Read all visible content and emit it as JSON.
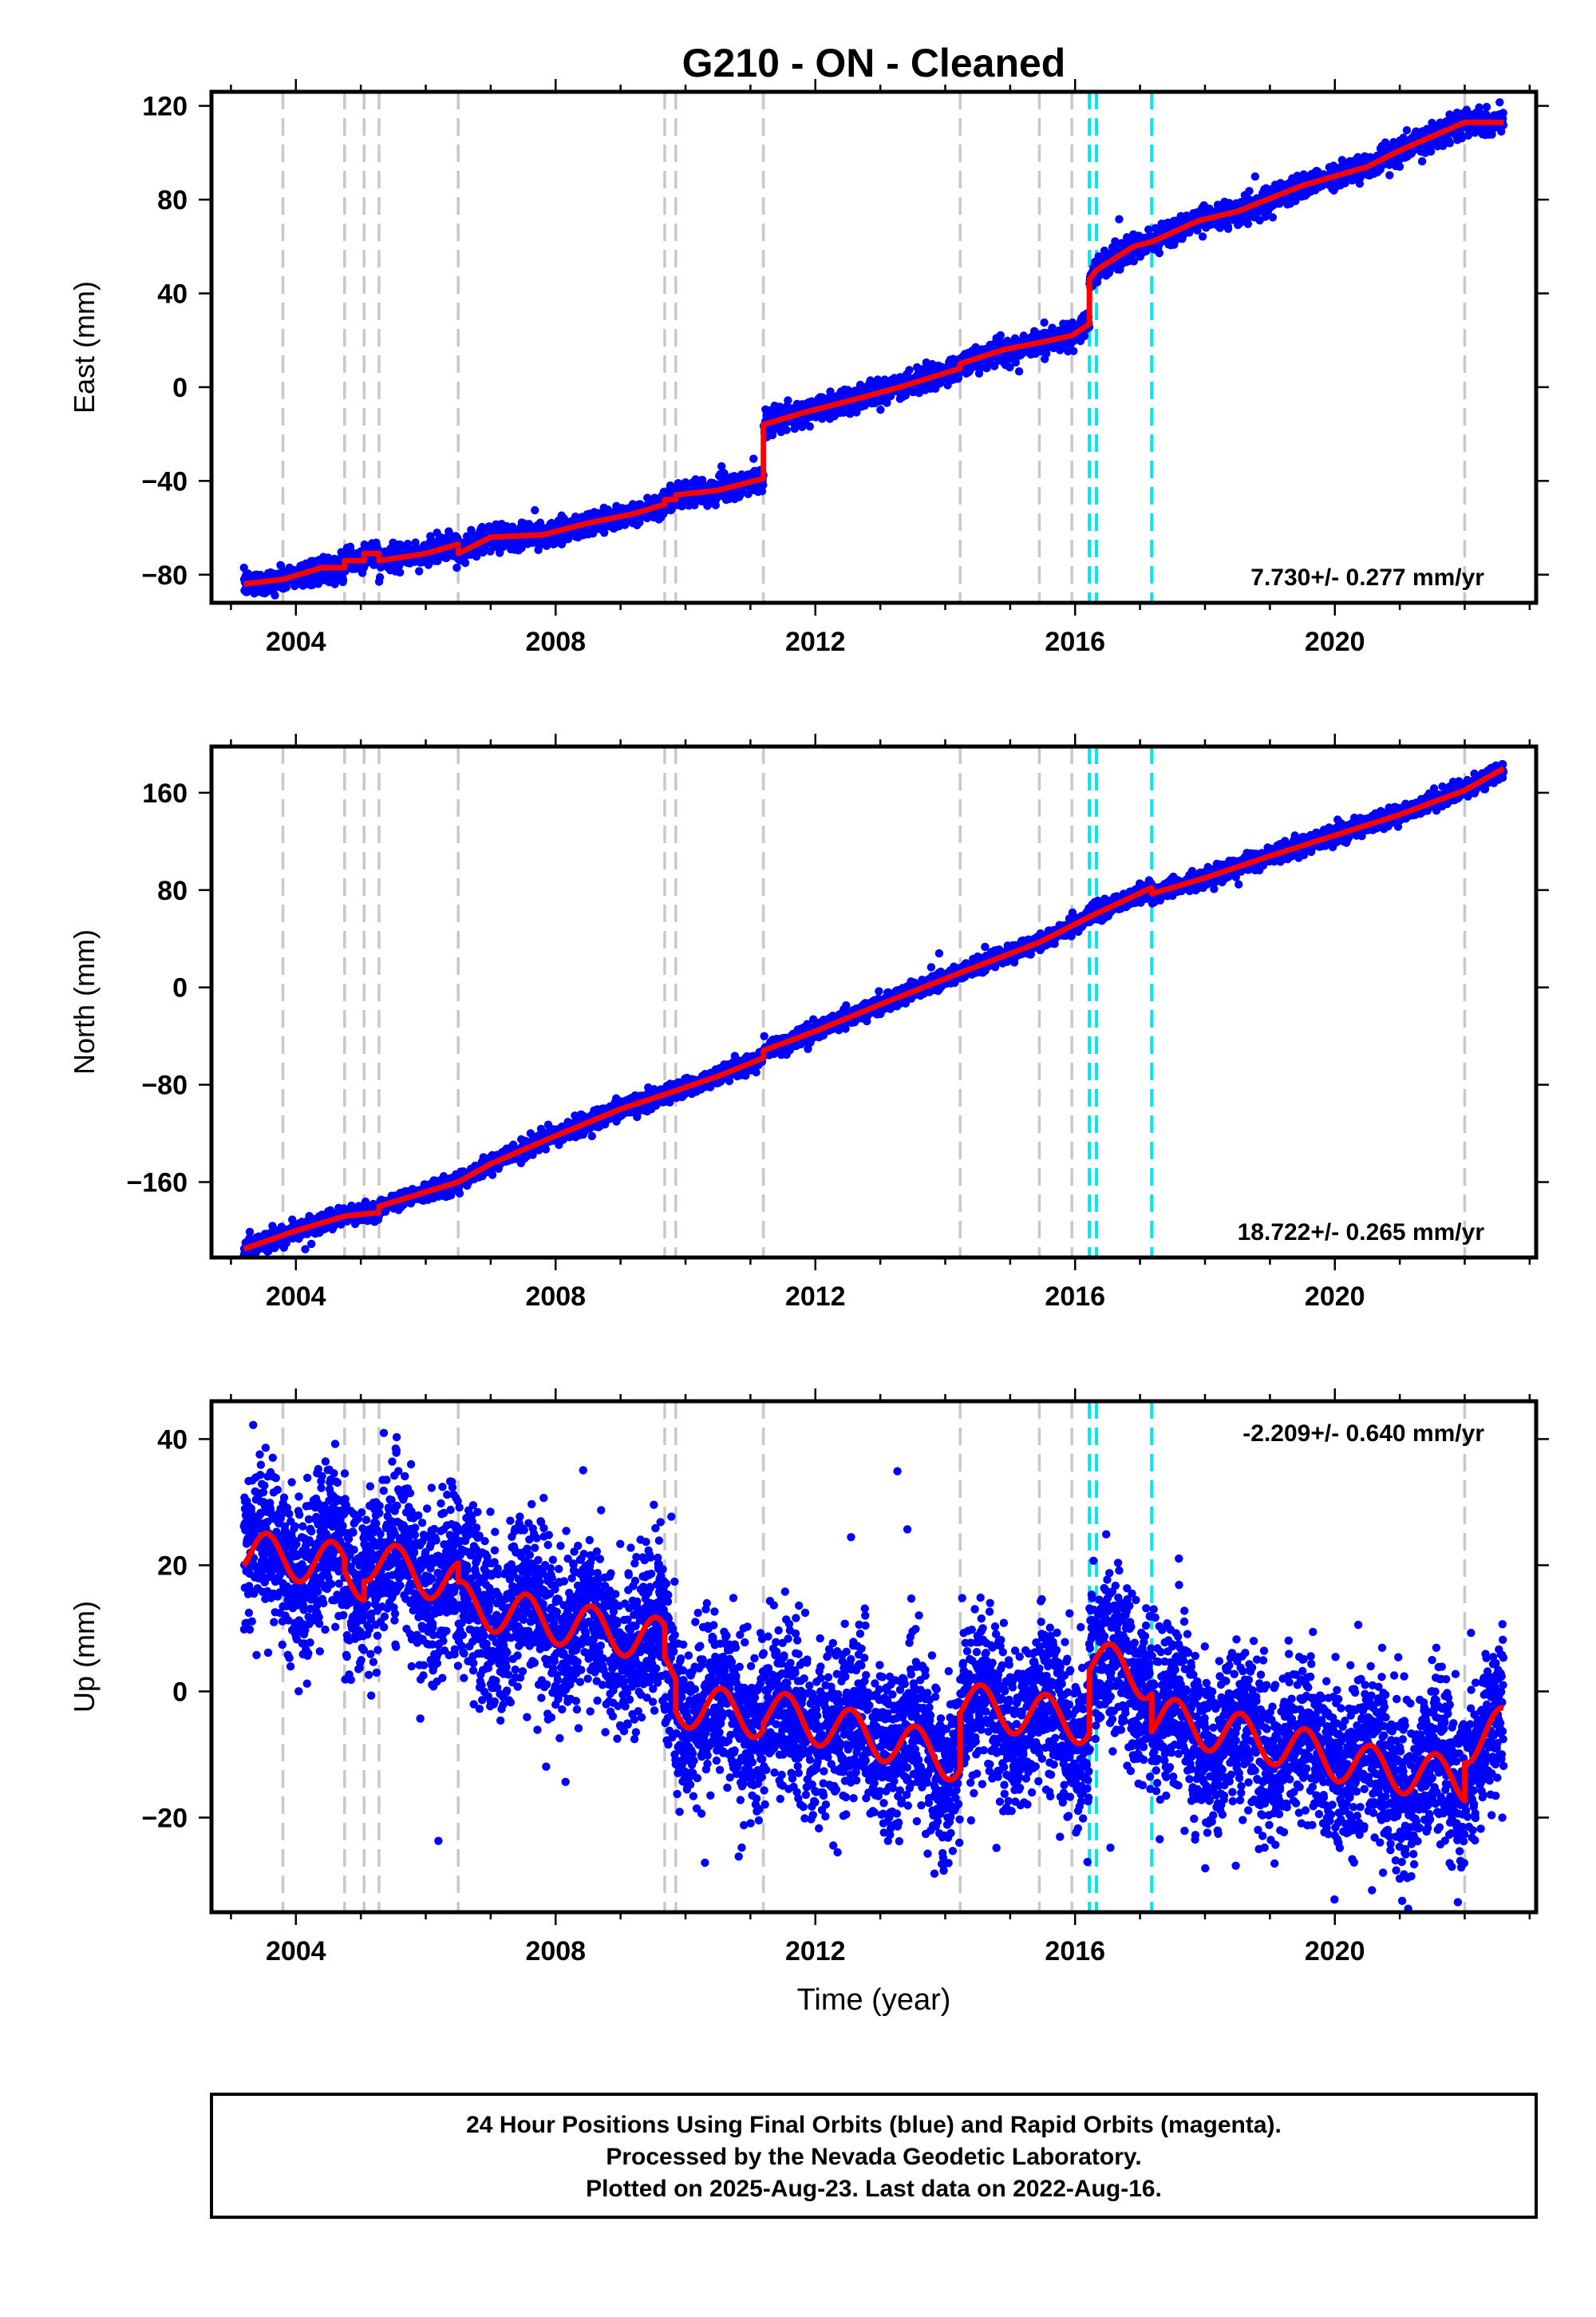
{
  "title": "G210  - ON - Cleaned",
  "x_label": "Time (year)",
  "footer": {
    "line1": "24 Hour Positions Using Final Orbits (blue) and Rapid Orbits (magenta).",
    "line2": "Processed by the Nevada Geodetic Laboratory.",
    "line3": "Plotted on 2025-Aug-23. Last data on 2022-Aug-16."
  },
  "colors": {
    "data_points": "#0000ff",
    "model_fit": "#ff0000",
    "equipment_change_lines": "#c8c8c8",
    "earthquake_lines": "#00e5ee",
    "frame": "#000000"
  },
  "chart_data": [
    {
      "type": "scatter",
      "component": "East",
      "ylabel": "East (mm)",
      "xlabel": "",
      "xlim": [
        2002.7,
        2023.1
      ],
      "ylim": [
        -92,
        126
      ],
      "x_ticks": [
        2004,
        2008,
        2012,
        2016,
        2020
      ],
      "y_ticks": [
        -80,
        -40,
        0,
        40,
        80,
        120
      ],
      "y_tick_labels": [
        "−80",
        "−40",
        "0",
        "40",
        "80",
        "120"
      ],
      "rate_label": "7.730+/- 0.277 mm/yr",
      "rate_label_position": "bottom-right",
      "equipment_change_years": [
        2003.8,
        2004.75,
        2005.05,
        2005.28,
        2006.5,
        2009.68,
        2009.85,
        2011.2,
        2014.23,
        2015.45,
        2015.95,
        2022.0
      ],
      "earthquake_years": [
        2016.22,
        2016.33,
        2017.18
      ],
      "noise_mm": 2.5,
      "fit": [
        [
          2003.2,
          -84
        ],
        [
          2003.8,
          -82
        ],
        [
          2004.4,
          -77
        ],
        [
          2004.75,
          -77
        ],
        [
          2004.75,
          -74
        ],
        [
          2005.05,
          -74
        ],
        [
          2005.05,
          -71
        ],
        [
          2005.28,
          -71
        ],
        [
          2005.28,
          -74
        ],
        [
          2006.0,
          -71
        ],
        [
          2006.5,
          -67
        ],
        [
          2006.5,
          -71
        ],
        [
          2007.0,
          -64
        ],
        [
          2007.8,
          -63
        ],
        [
          2008.5,
          -58
        ],
        [
          2009.2,
          -54
        ],
        [
          2009.68,
          -50
        ],
        [
          2009.68,
          -48
        ],
        [
          2009.85,
          -48
        ],
        [
          2009.85,
          -46
        ],
        [
          2010.5,
          -44
        ],
        [
          2011.2,
          -39
        ],
        [
          2011.2,
          -16
        ],
        [
          2011.8,
          -11
        ],
        [
          2012.5,
          -6
        ],
        [
          2013.3,
          0
        ],
        [
          2014.23,
          8
        ],
        [
          2014.23,
          10
        ],
        [
          2014.9,
          16
        ],
        [
          2015.45,
          19
        ],
        [
          2015.95,
          22
        ],
        [
          2016.22,
          27
        ],
        [
          2016.22,
          46
        ],
        [
          2016.33,
          50
        ],
        [
          2016.9,
          60
        ],
        [
          2017.18,
          62
        ],
        [
          2017.9,
          71
        ],
        [
          2018.5,
          75
        ],
        [
          2019.5,
          86
        ],
        [
          2020.5,
          94
        ],
        [
          2021.0,
          101
        ],
        [
          2022.0,
          113
        ],
        [
          2022.6,
          113
        ]
      ]
    },
    {
      "type": "scatter",
      "component": "North",
      "ylabel": "North (mm)",
      "xlabel": "",
      "xlim": [
        2002.7,
        2023.1
      ],
      "ylim": [
        -222,
        198
      ],
      "x_ticks": [
        2004,
        2008,
        2012,
        2016,
        2020
      ],
      "y_ticks": [
        -160,
        -80,
        0,
        80,
        160
      ],
      "y_tick_labels": [
        "−160",
        "−80",
        "0",
        "80",
        "160"
      ],
      "rate_label": "18.722+/- 0.265 mm/yr",
      "rate_label_position": "bottom-right",
      "equipment_change_years": [
        2003.8,
        2004.75,
        2005.05,
        2005.28,
        2006.5,
        2009.68,
        2009.85,
        2011.2,
        2014.23,
        2015.45,
        2015.95,
        2022.0
      ],
      "earthquake_years": [
        2016.22,
        2016.33,
        2017.18
      ],
      "noise_mm": 3.5,
      "fit": [
        [
          2003.2,
          -215
        ],
        [
          2004.0,
          -200
        ],
        [
          2004.75,
          -188
        ],
        [
          2005.28,
          -185
        ],
        [
          2005.28,
          -180
        ],
        [
          2006.5,
          -160
        ],
        [
          2007.0,
          -145
        ],
        [
          2008.0,
          -122
        ],
        [
          2009.0,
          -100
        ],
        [
          2009.68,
          -88
        ],
        [
          2010.5,
          -73
        ],
        [
          2011.2,
          -58
        ],
        [
          2011.2,
          -52
        ],
        [
          2012.0,
          -36
        ],
        [
          2013.0,
          -14
        ],
        [
          2014.23,
          12
        ],
        [
          2015.45,
          37
        ],
        [
          2016.22,
          58
        ],
        [
          2017.18,
          82
        ],
        [
          2017.18,
          77
        ],
        [
          2018.0,
          90
        ],
        [
          2019.0,
          108
        ],
        [
          2020.0,
          125
        ],
        [
          2021.0,
          142
        ],
        [
          2022.0,
          162
        ],
        [
          2022.6,
          180
        ]
      ]
    },
    {
      "type": "scatter",
      "component": "Up",
      "ylabel": "Up (mm)",
      "xlabel": "Time (year)",
      "xlim": [
        2002.7,
        2023.1
      ],
      "ylim": [
        -35,
        46
      ],
      "x_ticks": [
        2004,
        2008,
        2012,
        2016,
        2020
      ],
      "y_ticks": [
        -20,
        0,
        20,
        40
      ],
      "y_tick_labels": [
        "−20",
        "0",
        "20",
        "40"
      ],
      "rate_label": "-2.209+/- 0.640 mm/yr",
      "rate_label_position": "top-right",
      "equipment_change_years": [
        2003.8,
        2004.75,
        2005.05,
        2005.28,
        2006.5,
        2009.68,
        2009.85,
        2011.2,
        2014.23,
        2015.45,
        2015.95,
        2022.0
      ],
      "earthquake_years": [
        2016.22,
        2016.33,
        2017.18
      ],
      "noise_mm": 6.5,
      "seasonal_amplitude_mm": 3.5,
      "fit": [
        [
          2003.2,
          22
        ],
        [
          2004.75,
          20
        ],
        [
          2004.75,
          18
        ],
        [
          2005.05,
          18
        ],
        [
          2005.05,
          21
        ],
        [
          2006.5,
          17
        ],
        [
          2006.5,
          14
        ],
        [
          2008.0,
          11
        ],
        [
          2009.68,
          8
        ],
        [
          2009.68,
          3
        ],
        [
          2009.85,
          3
        ],
        [
          2009.85,
          -2
        ],
        [
          2011.2,
          -4
        ],
        [
          2011.2,
          -3
        ],
        [
          2013.2,
          -8
        ],
        [
          2014.23,
          -11
        ],
        [
          2014.23,
          -2
        ],
        [
          2016.22,
          -5
        ],
        [
          2016.22,
          5
        ],
        [
          2017.18,
          2
        ],
        [
          2017.18,
          -4
        ],
        [
          2019.0,
          -8
        ],
        [
          2020.5,
          -12
        ],
        [
          2022.0,
          -14
        ],
        [
          2022.0,
          -8
        ],
        [
          2022.6,
          -6
        ]
      ]
    }
  ]
}
